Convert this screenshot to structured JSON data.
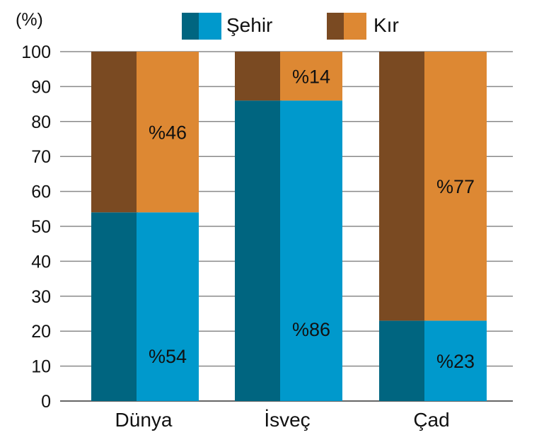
{
  "chart_data": {
    "type": "bar",
    "stacked": true,
    "unit_label": "(%)",
    "categories": [
      "Dünya",
      "İsveç",
      "Çad"
    ],
    "series": [
      {
        "name": "Şehir",
        "values": [
          54,
          86,
          23
        ],
        "labels": [
          "%54",
          "%86",
          "%23"
        ],
        "color": "#0099cc",
        "shade_color": "#006580"
      },
      {
        "name": "Kır",
        "values": [
          46,
          14,
          77
        ],
        "labels": [
          "%46",
          "%14",
          "%77"
        ],
        "color": "#dd8833",
        "shade_color": "#7a4a22"
      }
    ],
    "yticks": [
      "0",
      "10",
      "20",
      "30",
      "40",
      "50",
      "60",
      "70",
      "80",
      "90",
      "100"
    ],
    "ylim": [
      0,
      100
    ],
    "grid": true,
    "legend_position": "top"
  }
}
